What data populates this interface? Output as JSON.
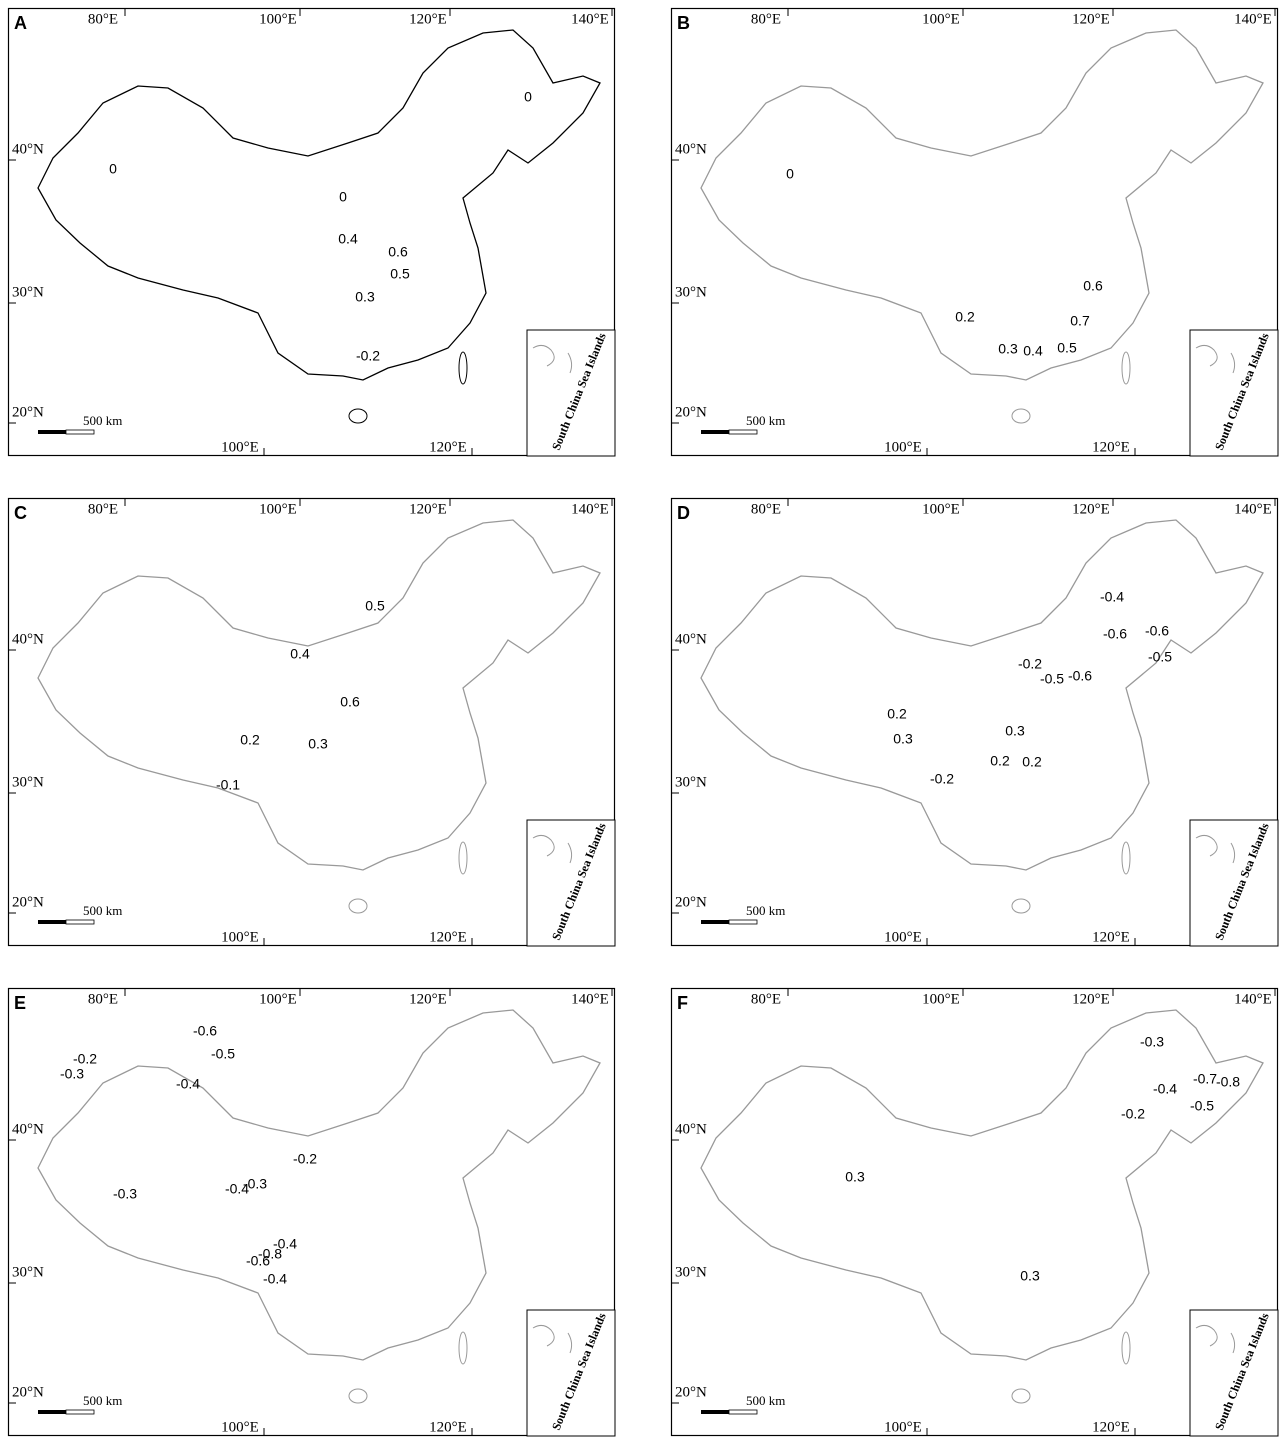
{
  "panels": [
    {
      "letter": "A",
      "top_lon_labels": [
        "80°E",
        "100°E",
        "120°E",
        "140°E"
      ],
      "bottom_lon_labels": [
        "100°E",
        "120°E"
      ],
      "lat_labels": [
        "40°N",
        "30°N",
        "20°N"
      ],
      "scale_label": "500 km",
      "inset_label": "South China Sea Islands",
      "contour_labels": [
        "0",
        "0",
        "0",
        "0.4",
        "0.6",
        "0.5",
        "0.3",
        "-0.2"
      ]
    },
    {
      "letter": "B",
      "top_lon_labels": [
        "80°E",
        "100°E",
        "120°E",
        "140°E"
      ],
      "bottom_lon_labels": [
        "100°E",
        "120°E"
      ],
      "lat_labels": [
        "40°N",
        "30°N",
        "20°N"
      ],
      "scale_label": "500 km",
      "inset_label": "South China Sea Islands",
      "contour_labels": [
        "0",
        "0.6",
        "0.7",
        "0.2",
        "0.3",
        "0.4",
        "0.5"
      ]
    },
    {
      "letter": "C",
      "top_lon_labels": [
        "80°E",
        "100°E",
        "120°E",
        "140°E"
      ],
      "bottom_lon_labels": [
        "100°E",
        "120°E"
      ],
      "lat_labels": [
        "40°N",
        "30°N",
        "20°N"
      ],
      "scale_label": "500 km",
      "inset_label": "South China Sea Islands",
      "contour_labels": [
        "0.4",
        "0.5",
        "0.6",
        "0.3",
        "0.2",
        "-0.1"
      ]
    },
    {
      "letter": "D",
      "top_lon_labels": [
        "80°E",
        "100°E",
        "120°E",
        "140°E"
      ],
      "bottom_lon_labels": [
        "100°E",
        "120°E"
      ],
      "lat_labels": [
        "40°N",
        "30°N",
        "20°N"
      ],
      "scale_label": "500 km",
      "inset_label": "South China Sea Islands",
      "contour_labels": [
        "-0.4",
        "-0.6",
        "-0.6",
        "-0.5",
        "-0.2",
        "-0.5",
        "-0.6",
        "0.2",
        "0.3",
        "0.3",
        "0.2",
        "0.2",
        "-0.2"
      ]
    },
    {
      "letter": "E",
      "top_lon_labels": [
        "80°E",
        "100°E",
        "120°E",
        "140°E"
      ],
      "bottom_lon_labels": [
        "100°E",
        "120°E"
      ],
      "lat_labels": [
        "40°N",
        "30°N",
        "20°N"
      ],
      "scale_label": "500 km",
      "inset_label": "South China Sea Islands",
      "contour_labels": [
        "-0.6",
        "-0.5",
        "-0.4",
        "-0.2",
        "-0.3",
        "-0.3",
        "-0.3",
        "-0.4",
        "-0.2",
        "-0.4",
        "-0.8",
        "-0.6",
        "-0.4"
      ]
    },
    {
      "letter": "F",
      "top_lon_labels": [
        "80°E",
        "100°E",
        "120°E",
        "140°E"
      ],
      "bottom_lon_labels": [
        "100°E",
        "120°E"
      ],
      "lat_labels": [
        "40°N",
        "30°N",
        "20°N"
      ],
      "scale_label": "500 km",
      "inset_label": "South China Sea Islands",
      "contour_labels": [
        "-0.3",
        "-0.7",
        "-0.8",
        "-0.4",
        "-0.5",
        "-0.2",
        "0.3",
        "0.3"
      ]
    }
  ]
}
